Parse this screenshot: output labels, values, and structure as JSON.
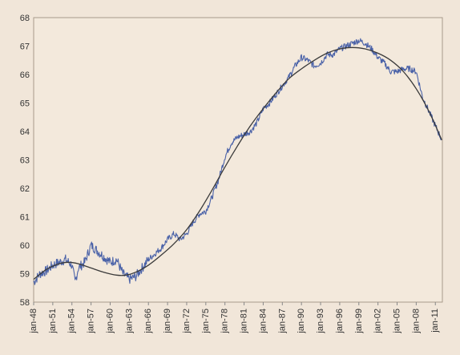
{
  "chart_data": {
    "type": "line",
    "title": "",
    "xlabel": "",
    "ylabel": "",
    "ylim": [
      58,
      68
    ],
    "yticks": [
      58,
      59,
      60,
      61,
      62,
      63,
      64,
      65,
      66,
      67,
      68
    ],
    "xlim": [
      1948.0,
      2012.1
    ],
    "xtick_years": [
      1948,
      1951,
      1954,
      1957,
      1960,
      1963,
      1966,
      1969,
      1972,
      1975,
      1978,
      1981,
      1984,
      1987,
      1990,
      1993,
      1996,
      1999,
      2002,
      2005,
      2008,
      2011
    ],
    "xtick_labels": [
      "jan-48",
      "jan-51",
      "jan-54",
      "jan-57",
      "jan-60",
      "jan-63",
      "jan-66",
      "jan-69",
      "jan-72",
      "jan-75",
      "jan-78",
      "jan-81",
      "jan-84",
      "jan-87",
      "jan-90",
      "jan-93",
      "jan-96",
      "jan-99",
      "jan-02",
      "jan-05",
      "jan-08",
      "jan-11"
    ],
    "grid": false,
    "legend": "none",
    "series": [
      {
        "role": "monthly-data",
        "color": "#4a62a8",
        "x": [
          1948.0,
          1949.0,
          1950.0,
          1951.0,
          1952.0,
          1953.0,
          1954.0,
          1954.5,
          1955.0,
          1956.0,
          1957.0,
          1958.0,
          1959.0,
          1960.0,
          1961.0,
          1962.0,
          1963.0,
          1964.0,
          1965.0,
          1966.0,
          1967.0,
          1968.0,
          1969.0,
          1970.0,
          1971.0,
          1972.0,
          1973.0,
          1974.0,
          1975.0,
          1976.0,
          1977.0,
          1978.0,
          1979.0,
          1980.0,
          1981.0,
          1982.0,
          1983.0,
          1984.0,
          1985.0,
          1986.0,
          1987.0,
          1988.0,
          1989.0,
          1990.0,
          1991.0,
          1992.0,
          1993.0,
          1994.0,
          1995.0,
          1996.0,
          1997.0,
          1998.0,
          1999.0,
          2000.0,
          2001.0,
          2002.0,
          2003.0,
          2004.0,
          2005.0,
          2006.0,
          2007.0,
          2008.0,
          2009.0,
          2010.0,
          2011.0,
          2012.0
        ],
        "y": [
          58.7,
          59.0,
          59.1,
          59.3,
          59.4,
          59.5,
          59.3,
          58.7,
          59.2,
          59.4,
          60.0,
          59.8,
          59.6,
          59.4,
          59.5,
          59.0,
          58.8,
          58.9,
          59.2,
          59.5,
          59.7,
          59.9,
          60.2,
          60.4,
          60.2,
          60.4,
          60.8,
          61.1,
          61.2,
          61.7,
          62.3,
          63.1,
          63.6,
          63.8,
          63.9,
          64.0,
          64.3,
          64.8,
          65.0,
          65.3,
          65.6,
          65.9,
          66.3,
          66.6,
          66.5,
          66.3,
          66.4,
          66.7,
          66.7,
          66.9,
          67.0,
          67.1,
          67.2,
          67.1,
          66.9,
          66.6,
          66.4,
          66.1,
          66.1,
          66.2,
          66.2,
          66.1,
          65.2,
          64.7,
          64.2,
          63.7
        ]
      },
      {
        "role": "trend-curve",
        "color": "#3a3a3a",
        "x": [
          1948,
          1950,
          1952,
          1953.5,
          1955,
          1957,
          1959,
          1961,
          1962.5,
          1964,
          1966,
          1968,
          1970,
          1972,
          1974,
          1976,
          1978,
          1980,
          1982,
          1984,
          1986,
          1988,
          1990,
          1992,
          1994,
          1996,
          1998,
          2000,
          2002,
          2004,
          2006,
          2008,
          2010,
          2012
        ],
        "y": [
          58.8,
          59.15,
          59.35,
          59.4,
          59.35,
          59.2,
          59.05,
          58.95,
          58.95,
          59.05,
          59.3,
          59.65,
          60.05,
          60.55,
          61.2,
          61.95,
          62.75,
          63.5,
          64.2,
          64.8,
          65.35,
          65.85,
          66.2,
          66.5,
          66.75,
          66.9,
          66.95,
          66.9,
          66.75,
          66.5,
          66.1,
          65.5,
          64.7,
          63.7
        ]
      }
    ]
  }
}
